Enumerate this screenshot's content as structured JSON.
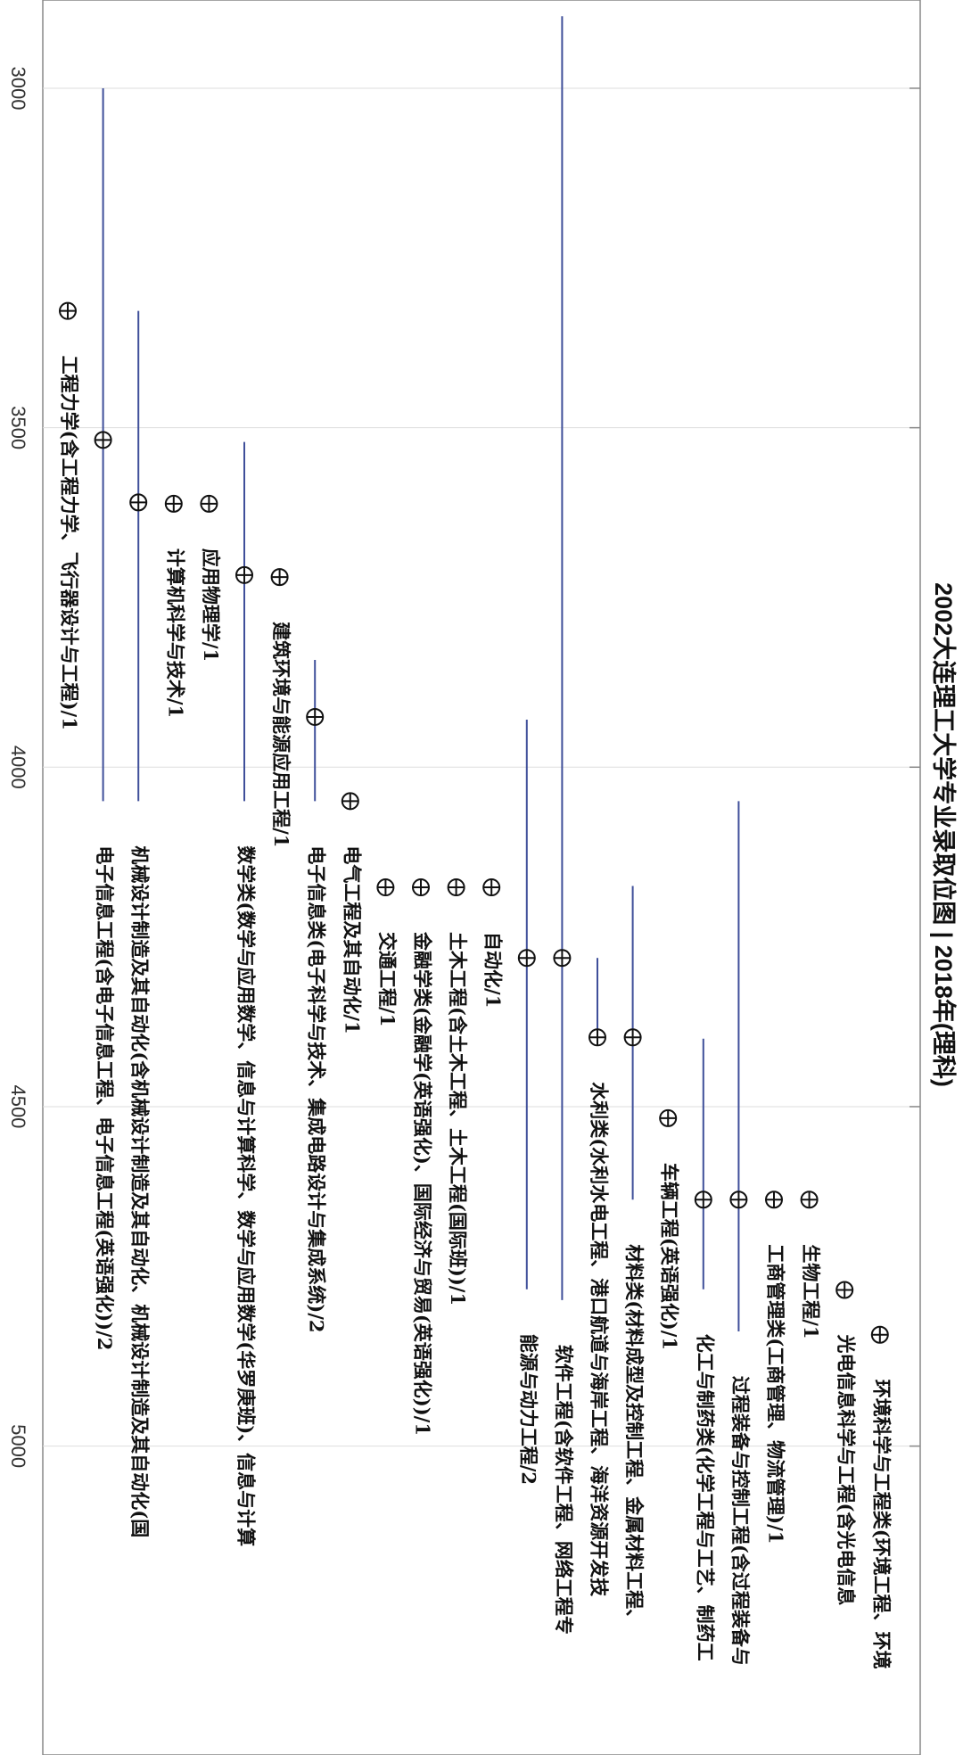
{
  "chart_data": {
    "type": "rankrange",
    "title": "2002大连理工大学专业录取位图 | 2018年(理科)",
    "categories": [
      "工程力学(含工程力学、飞行器设计与工程)/1",
      "电子信息工程(含电子信息工程、电子信息工程(英语强化))/2",
      "机械设计制造及其自动化(含机械设计制造及其自动化、机械设计制造及其自动化(国",
      "计算机科学与技术/1",
      "应用物理学/1",
      "数学类(数学与应用数学、信息与计算科学、数学与应用数学(华罗庚班)、信息与计算",
      "建筑环境与能源应用工程/1",
      "电子信息类(电子科学与技术、集成电路设计与集成系统)/2",
      "电气工程及其自动化/1",
      "交通工程/1",
      "金融学类(金融学(英语强化)、国际经济与贸易(英语强化))/1",
      "土木工程(含土木工程、土木工程(国际班))/1",
      "自动化/1",
      "能源与动力工程/2",
      "软件工程(含软件工程、网络工程专",
      "水利类(水利水电工程、港口航道与海岸工程、海洋资源开发技",
      "材料类(材料成型及控制工程、金属材料工程、",
      "车辆工程(英语强化)/1",
      "化工与制药类(化学工程与工艺、制药工",
      "过程装备与控制工程(含过程装备与",
      "工商管理类(工商管理、物流管理)/1",
      "生物工程/1",
      "光电信息科学与工程(含光电信息",
      "环境科学与工程类(环境工程、环境"
    ],
    "values": [
      3328,
      3518,
      3610,
      3612,
      3612,
      3717,
      3720,
      3926,
      4050,
      4177,
      4177,
      4177,
      4177,
      4281,
      4281,
      4398,
      4398,
      4517,
      4637,
      4637,
      4637,
      4637,
      4770,
      4836
    ],
    "low": [
      null,
      3000,
      3328,
      null,
      null,
      3521,
      null,
      3842,
      null,
      null,
      null,
      null,
      null,
      3930,
      2894,
      4281,
      4175,
      null,
      4400,
      4050,
      null,
      null,
      null,
      null
    ],
    "high": [
      null,
      4050,
      4050,
      null,
      null,
      4050,
      null,
      4050,
      null,
      null,
      null,
      null,
      null,
      4769,
      4785,
      4398,
      4637,
      null,
      4769,
      4831,
      null,
      null,
      null,
      null
    ],
    "color": "#3f4f9a",
    "ylim": [
      2870,
      5455
    ],
    "yticks": [
      3000,
      3500,
      4000,
      4500,
      5000
    ],
    "grid": true
  }
}
